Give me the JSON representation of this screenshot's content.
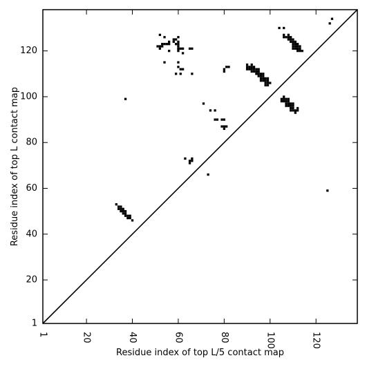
{
  "chart_data": {
    "type": "scatter",
    "title": "",
    "xlabel": "Residue index of top L/5 contact map",
    "ylabel": "Residue index of top L contact map",
    "xlim": [
      1,
      138
    ],
    "ylim": [
      1,
      138
    ],
    "xticks": [
      1,
      20,
      40,
      60,
      80,
      100,
      120
    ],
    "yticks": [
      1,
      20,
      40,
      60,
      80,
      100,
      120
    ],
    "xtick_rotation": -90,
    "grid": false,
    "legend": "none",
    "marker": "square",
    "marker_color": "#000000",
    "diagonal_line": true,
    "series": [
      {
        "name": "",
        "points": [
          [
            37,
            99
          ],
          [
            33,
            53
          ],
          [
            34,
            52
          ],
          [
            35,
            52
          ],
          [
            34,
            51
          ],
          [
            35,
            51
          ],
          [
            36,
            51
          ],
          [
            35,
            50
          ],
          [
            36,
            50
          ],
          [
            37,
            50
          ],
          [
            36,
            49
          ],
          [
            37,
            49
          ],
          [
            37,
            48
          ],
          [
            38,
            48
          ],
          [
            39,
            48
          ],
          [
            38,
            47
          ],
          [
            39,
            47
          ],
          [
            40,
            46
          ],
          [
            52,
            127
          ],
          [
            54,
            126
          ],
          [
            60,
            126
          ],
          [
            58,
            125
          ],
          [
            59,
            125
          ],
          [
            56,
            124
          ],
          [
            58,
            124
          ],
          [
            60,
            124
          ],
          [
            53,
            123
          ],
          [
            54,
            123
          ],
          [
            55,
            123
          ],
          [
            56,
            123
          ],
          [
            59,
            123
          ],
          [
            60,
            123
          ],
          [
            51,
            122
          ],
          [
            52,
            122
          ],
          [
            53,
            122
          ],
          [
            60,
            122
          ],
          [
            52,
            121
          ],
          [
            60,
            121
          ],
          [
            61,
            121
          ],
          [
            62,
            121
          ],
          [
            65,
            121
          ],
          [
            66,
            121
          ],
          [
            56,
            120
          ],
          [
            60,
            120
          ],
          [
            62,
            119
          ],
          [
            54,
            115
          ],
          [
            60,
            115
          ],
          [
            60,
            113
          ],
          [
            61,
            112
          ],
          [
            62,
            112
          ],
          [
            59,
            110
          ],
          [
            61,
            110
          ],
          [
            66,
            110
          ],
          [
            71,
            97
          ],
          [
            74,
            94
          ],
          [
            76,
            94
          ],
          [
            76,
            90
          ],
          [
            77,
            90
          ],
          [
            79,
            90
          ],
          [
            80,
            90
          ],
          [
            79,
            87
          ],
          [
            80,
            87
          ],
          [
            81,
            87
          ],
          [
            80,
            86
          ],
          [
            63,
            73
          ],
          [
            66,
            73
          ],
          [
            65,
            72
          ],
          [
            66,
            72
          ],
          [
            65,
            71
          ],
          [
            73,
            66
          ],
          [
            125,
            59
          ],
          [
            80,
            112
          ],
          [
            80,
            111
          ],
          [
            81,
            113
          ],
          [
            82,
            113
          ],
          [
            90,
            114
          ],
          [
            92,
            114
          ],
          [
            90,
            113
          ],
          [
            91,
            113
          ],
          [
            92,
            113
          ],
          [
            93,
            113
          ],
          [
            90,
            112
          ],
          [
            91,
            112
          ],
          [
            92,
            112
          ],
          [
            93,
            112
          ],
          [
            94,
            112
          ],
          [
            95,
            112
          ],
          [
            92,
            111
          ],
          [
            93,
            111
          ],
          [
            94,
            111
          ],
          [
            95,
            111
          ],
          [
            94,
            110
          ],
          [
            95,
            110
          ],
          [
            96,
            110
          ],
          [
            97,
            110
          ],
          [
            95,
            109
          ],
          [
            96,
            109
          ],
          [
            97,
            109
          ],
          [
            96,
            108
          ],
          [
            97,
            108
          ],
          [
            98,
            108
          ],
          [
            99,
            108
          ],
          [
            96,
            107
          ],
          [
            97,
            107
          ],
          [
            98,
            107
          ],
          [
            99,
            107
          ],
          [
            98,
            106
          ],
          [
            99,
            106
          ],
          [
            100,
            106
          ],
          [
            98,
            105
          ],
          [
            99,
            105
          ],
          [
            104,
            130
          ],
          [
            106,
            130
          ],
          [
            106,
            127
          ],
          [
            108,
            127
          ],
          [
            106,
            126
          ],
          [
            107,
            126
          ],
          [
            108,
            126
          ],
          [
            109,
            126
          ],
          [
            108,
            125
          ],
          [
            109,
            125
          ],
          [
            110,
            125
          ],
          [
            109,
            124
          ],
          [
            110,
            124
          ],
          [
            111,
            124
          ],
          [
            110,
            123
          ],
          [
            111,
            123
          ],
          [
            112,
            123
          ],
          [
            110,
            122
          ],
          [
            111,
            122
          ],
          [
            112,
            122
          ],
          [
            113,
            122
          ],
          [
            110,
            121
          ],
          [
            111,
            121
          ],
          [
            112,
            121
          ],
          [
            113,
            121
          ],
          [
            112,
            120
          ],
          [
            113,
            120
          ],
          [
            114,
            120
          ],
          [
            126,
            132
          ],
          [
            127,
            134
          ],
          [
            106,
            100
          ],
          [
            105,
            99
          ],
          [
            106,
            99
          ],
          [
            107,
            99
          ],
          [
            108,
            99
          ],
          [
            105,
            98
          ],
          [
            106,
            98
          ],
          [
            107,
            98
          ],
          [
            108,
            98
          ],
          [
            107,
            97
          ],
          [
            108,
            97
          ],
          [
            109,
            97
          ],
          [
            110,
            97
          ],
          [
            107,
            96
          ],
          [
            108,
            96
          ],
          [
            109,
            96
          ],
          [
            110,
            96
          ],
          [
            109,
            95
          ],
          [
            110,
            95
          ],
          [
            112,
            95
          ],
          [
            109,
            94
          ],
          [
            110,
            94
          ],
          [
            111,
            94
          ],
          [
            112,
            94
          ],
          [
            111,
            93
          ]
        ]
      }
    ]
  }
}
